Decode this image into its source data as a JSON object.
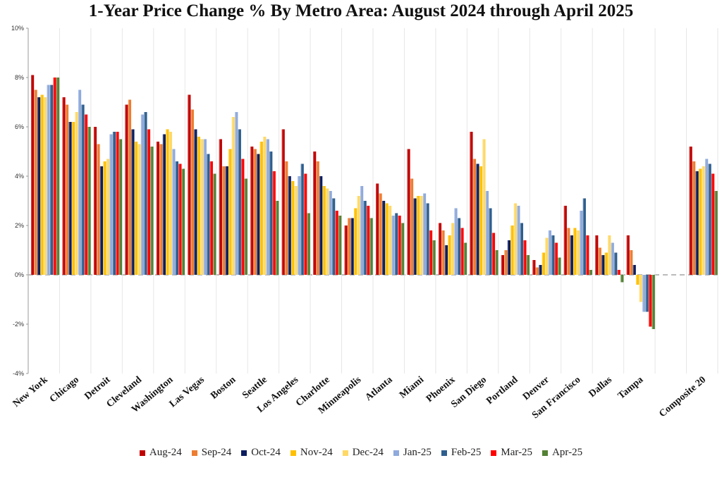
{
  "chart_data": {
    "type": "bar",
    "title": "1-Year Price Change % By Metro Area: August 2024 through April 2025",
    "xlabel": "",
    "ylabel": "",
    "ylim": [
      -4,
      10
    ],
    "y_ticks": [
      "10%",
      "8%",
      "6%",
      "4%",
      "2%",
      "0%",
      "-2%",
      "-4%"
    ],
    "y_tick_values": [
      10,
      8,
      6,
      4,
      2,
      0,
      -2,
      -4
    ],
    "grid": false,
    "legend_position": "bottom",
    "zero_line": "dashed",
    "categories": [
      "New York",
      "Chicago",
      "Detroit",
      "Cleveland",
      "Washington",
      "Las Vegas",
      "Boston",
      "Seattle",
      "Los Angeles",
      "Charlotte",
      "Minneapolis",
      "Atlanta",
      "Miami",
      "Phoenix",
      "San Diego",
      "Portland",
      "Denver",
      "San Francisco",
      "Dallas",
      "Tampa",
      "",
      "Composite 20"
    ],
    "series": [
      {
        "name": "Aug-24",
        "color": "#c00000",
        "values": [
          8.1,
          7.2,
          6.0,
          6.9,
          5.4,
          7.3,
          5.5,
          5.2,
          5.9,
          5.0,
          2.0,
          3.7,
          5.1,
          2.1,
          5.8,
          0.8,
          0.6,
          2.8,
          1.6,
          1.6,
          null,
          5.2
        ]
      },
      {
        "name": "Sep-24",
        "color": "#ed7d31",
        "values": [
          7.5,
          6.9,
          5.3,
          7.1,
          5.3,
          6.7,
          4.4,
          5.1,
          4.6,
          4.6,
          2.3,
          3.3,
          3.9,
          1.8,
          4.7,
          1.0,
          0.3,
          1.9,
          1.1,
          1.0,
          null,
          4.6
        ]
      },
      {
        "name": "Oct-24",
        "color": "#0b1d5e",
        "values": [
          7.2,
          6.2,
          4.4,
          5.9,
          5.7,
          5.9,
          4.4,
          4.9,
          4.0,
          4.0,
          2.3,
          3.0,
          3.1,
          1.2,
          4.5,
          1.4,
          0.4,
          1.6,
          0.8,
          0.4,
          null,
          4.2
        ]
      },
      {
        "name": "Nov-24",
        "color": "#ffc000",
        "values": [
          7.3,
          6.2,
          4.6,
          5.4,
          5.9,
          5.6,
          5.1,
          5.4,
          3.8,
          3.6,
          2.7,
          2.9,
          3.2,
          1.6,
          4.4,
          2.0,
          0.9,
          1.9,
          0.9,
          -0.4,
          null,
          4.3
        ]
      },
      {
        "name": "Dec-24",
        "color": "#ffd966",
        "values": [
          7.2,
          6.6,
          4.7,
          5.3,
          5.8,
          5.5,
          6.4,
          5.6,
          3.6,
          3.5,
          3.2,
          2.8,
          3.2,
          2.1,
          5.5,
          2.9,
          1.5,
          1.8,
          1.6,
          -1.1,
          null,
          4.4
        ]
      },
      {
        "name": "Jan-25",
        "color": "#8faadc",
        "values": [
          7.7,
          7.5,
          5.7,
          6.5,
          5.1,
          5.5,
          6.6,
          5.5,
          4.0,
          3.4,
          3.6,
          2.4,
          3.3,
          2.7,
          3.4,
          2.8,
          1.8,
          2.6,
          1.3,
          -1.5,
          null,
          4.7
        ]
      },
      {
        "name": "Feb-25",
        "color": "#2e5e8e",
        "values": [
          7.7,
          6.9,
          5.8,
          6.6,
          4.6,
          4.9,
          5.9,
          5.0,
          4.5,
          3.1,
          3.0,
          2.5,
          2.9,
          2.3,
          2.7,
          2.1,
          1.6,
          3.1,
          0.9,
          -1.5,
          null,
          4.5
        ]
      },
      {
        "name": "Mar-25",
        "color": "#ff0000",
        "values": [
          8.0,
          6.5,
          5.8,
          5.9,
          4.5,
          4.6,
          4.7,
          4.2,
          4.1,
          2.6,
          2.8,
          2.4,
          1.8,
          1.9,
          1.7,
          1.4,
          1.3,
          1.6,
          0.2,
          -2.1,
          null,
          4.1
        ]
      },
      {
        "name": "Apr-25",
        "color": "#548235",
        "values": [
          8.0,
          6.0,
          5.5,
          5.2,
          4.3,
          4.1,
          3.9,
          3.0,
          2.5,
          2.4,
          2.3,
          2.1,
          1.4,
          1.3,
          1.0,
          0.8,
          0.7,
          0.2,
          -0.3,
          -2.2,
          null,
          3.4
        ]
      }
    ]
  }
}
